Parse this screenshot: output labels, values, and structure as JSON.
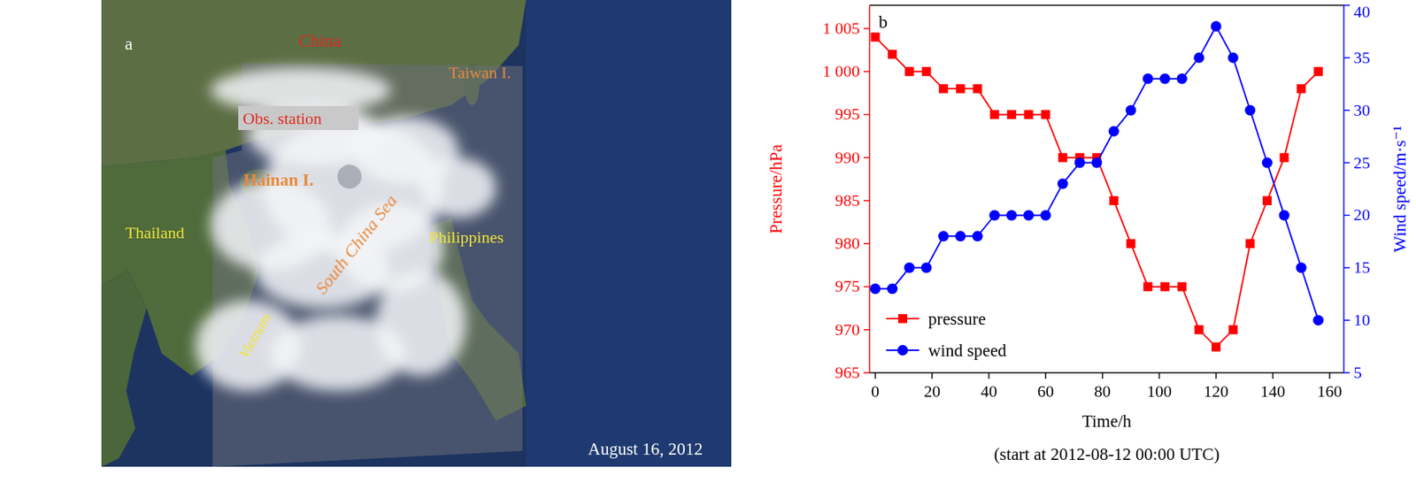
{
  "map_panel": {
    "panel_label": "a",
    "date": "August 16, 2012",
    "labels": [
      "China",
      "Obs. station",
      "Taiwan I.",
      "Hainan I.",
      "Thailand",
      "South China Sea",
      "Philippines",
      "Vietnam"
    ]
  },
  "chart_data": {
    "type": "line",
    "panel_label": "b",
    "x_label": "Time/h",
    "subtitle": "(start at 2012-08-12 00:00 UTC)",
    "y_label": "Pressure/hPa",
    "y2_label": "Wind speed/m·s⁻¹",
    "x": [
      0,
      6,
      12,
      18,
      24,
      30,
      36,
      42,
      48,
      54,
      60,
      66,
      72,
      78,
      84,
      90,
      96,
      102,
      108,
      114,
      120,
      126,
      132,
      138,
      144,
      150,
      156
    ],
    "series": [
      {
        "name": "pressure",
        "color": "#ff0000",
        "marker": "square",
        "axis": "y",
        "values": [
          1004,
          1002,
          1000,
          1000,
          998,
          998,
          998,
          995,
          995,
          995,
          995,
          990,
          990,
          990,
          985,
          980,
          975,
          975,
          975,
          970,
          968,
          970,
          980,
          985,
          990,
          998,
          1000
        ]
      },
      {
        "name": "wind speed",
        "color": "#0000ff",
        "marker": "circle",
        "axis": "y2",
        "values": [
          13,
          13,
          15,
          15,
          18,
          18,
          18,
          20,
          20,
          20,
          20,
          23,
          25,
          25,
          28,
          30,
          33,
          33,
          33,
          35,
          38,
          35,
          30,
          25,
          20,
          15,
          10
        ]
      }
    ],
    "xlim": [
      -2,
      165
    ],
    "xticks": [
      0,
      20,
      40,
      60,
      80,
      100,
      120,
      140,
      160
    ],
    "ylim": [
      965,
      1007.7
    ],
    "yticks": [
      965,
      970,
      975,
      980,
      985,
      990,
      995,
      {
        "value": 1000,
        "label": "1 000"
      },
      {
        "value": 1005,
        "label": "1 005"
      }
    ],
    "y2lim": [
      5,
      40
    ],
    "y2ticks": [
      5,
      10,
      15,
      20,
      25,
      30,
      35,
      40
    ],
    "legend": "lower left",
    "grid": false
  }
}
